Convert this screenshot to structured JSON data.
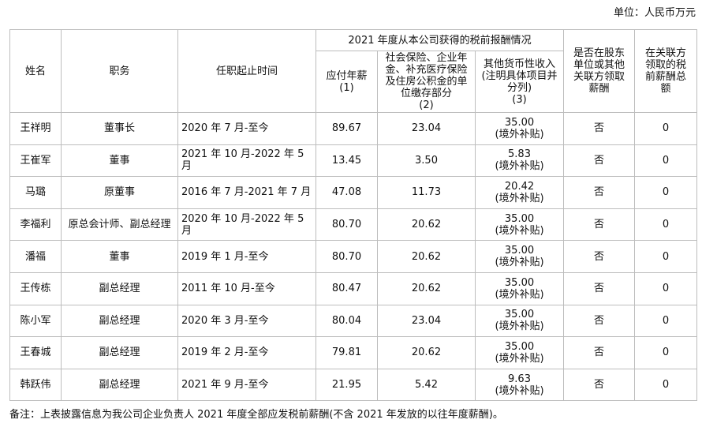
{
  "unit": "单位：人民币万元",
  "headers": {
    "name": "姓名",
    "position": "职务",
    "term": "任职起止时间",
    "group": "2021 年度从本公司获得的税前报酬情况",
    "salary": "应付年薪",
    "salary_no": "(1)",
    "insurance": "社会保险、企业年金、补充医疗保险及住房公积金的单位缴存部分",
    "insurance_no": "(2)",
    "other": "其他货币性收入(注明具体项目并分列)",
    "other_no": "(3)",
    "shareholder": "是否在股东单位或其他关联方领取薪酬",
    "related": "在关联方领取的税前薪酬总额"
  },
  "rows": [
    {
      "name": "王祥明",
      "position": "董事长",
      "term": "2020 年 7 月-至今",
      "salary": "89.67",
      "insurance": "23.04",
      "other": "35.00",
      "other_note": "(境外补贴)",
      "shareholder": "否",
      "related": "0"
    },
    {
      "name": "王崔军",
      "position": "董事",
      "term": "2021 年 10 月-2022 年 5 月",
      "salary": "13.45",
      "insurance": "3.50",
      "other": "5.83",
      "other_note": "(境外补贴)",
      "shareholder": "否",
      "related": "0"
    },
    {
      "name": "马璐",
      "position": "原董事",
      "term": "2016 年 7 月-2021 年 7 月",
      "salary": "47.08",
      "insurance": "11.73",
      "other": "20.42",
      "other_note": "(境外补贴)",
      "shareholder": "否",
      "related": "0"
    },
    {
      "name": "李福利",
      "position": "原总会计师、副总经理",
      "term": "2020 年 10 月-2022 年 5 月",
      "salary": "80.70",
      "insurance": "20.62",
      "other": "35.00",
      "other_note": "(境外补贴)",
      "shareholder": "否",
      "related": "0"
    },
    {
      "name": "潘福",
      "position": "董事",
      "term": "2019 年 1 月-至今",
      "salary": "80.70",
      "insurance": "20.62",
      "other": "35.00",
      "other_note": "(境外补贴)",
      "shareholder": "否",
      "related": "0"
    },
    {
      "name": "王传栋",
      "position": "副总经理",
      "term": "2011 年 10 月-至今",
      "salary": "80.47",
      "insurance": "20.62",
      "other": "35.00",
      "other_note": "(境外补贴)",
      "shareholder": "否",
      "related": "0"
    },
    {
      "name": "陈小军",
      "position": "副总经理",
      "term": "2020 年 3 月-至今",
      "salary": "80.04",
      "insurance": "23.04",
      "other": "35.00",
      "other_note": "(境外补贴)",
      "shareholder": "否",
      "related": "0"
    },
    {
      "name": "王春城",
      "position": "副总经理",
      "term": "2019 年 2 月-至今",
      "salary": "79.81",
      "insurance": "20.62",
      "other": "35.00",
      "other_note": "(境外补贴)",
      "shareholder": "否",
      "related": "0"
    },
    {
      "name": "韩跃伟",
      "position": "副总经理",
      "term": "2021 年 9 月-至今",
      "salary": "21.95",
      "insurance": "5.42",
      "other": "9.63",
      "other_note": "(境外补贴)",
      "shareholder": "否",
      "related": "0"
    }
  ],
  "note": "备注：上表披露信息为我公司企业负责人 2021 年度全部应发税前薪酬(不含 2021 年发放的以往年度薪酬)。"
}
